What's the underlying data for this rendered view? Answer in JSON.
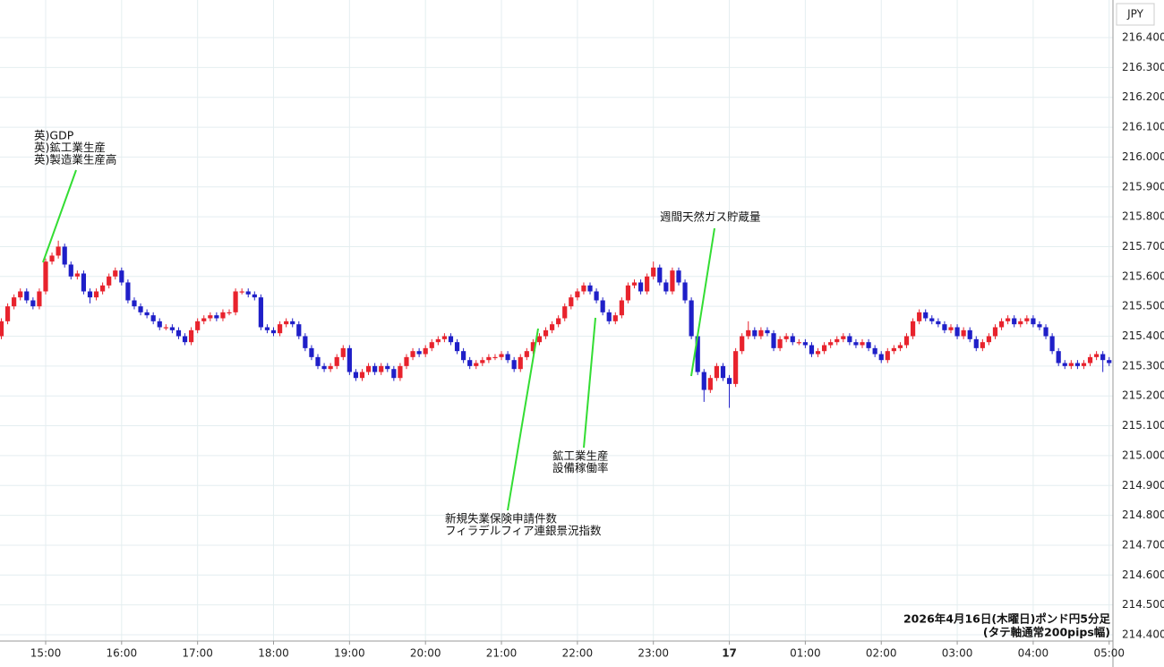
{
  "chart_data": {
    "type": "candlestick",
    "currency": "JPY",
    "footnote": [
      "2026年4月16日(木曜日)ポンド円5分足",
      "(タテ軸通常200pips幅)"
    ],
    "up_color": "#e8232d",
    "down_color": "#1f1fc8",
    "grid": true,
    "ylim": [
      214.379,
      216.526
    ],
    "yticks": [
      {
        "value": 214.4,
        "label": "214.400"
      },
      {
        "value": 214.5,
        "label": "214.500"
      },
      {
        "value": 214.6,
        "label": "214.600"
      },
      {
        "value": 214.7,
        "label": "214.700"
      },
      {
        "value": 214.8,
        "label": "214.800"
      },
      {
        "value": 214.9,
        "label": "214.900"
      },
      {
        "value": 215.0,
        "label": "215.000"
      },
      {
        "value": 215.1,
        "label": "215.100"
      },
      {
        "value": 215.2,
        "label": "215.200"
      },
      {
        "value": 215.3,
        "label": "215.300"
      },
      {
        "value": 215.4,
        "label": "215.400"
      },
      {
        "value": 215.5,
        "label": "215.500"
      },
      {
        "value": 215.6,
        "label": "215.600"
      },
      {
        "value": 215.7,
        "label": "215.700"
      },
      {
        "value": 215.8,
        "label": "215.800"
      },
      {
        "value": 215.9,
        "label": "215.900"
      },
      {
        "value": 216.0,
        "label": "216.000"
      },
      {
        "value": 216.1,
        "label": "216.100"
      },
      {
        "value": 216.2,
        "label": "216.200"
      },
      {
        "value": 216.3,
        "label": "216.300"
      },
      {
        "value": 216.4,
        "label": "216.400"
      }
    ],
    "categories": [
      null,
      null,
      null,
      null,
      null,
      null,
      null,
      "15:00",
      null,
      null,
      null,
      null,
      null,
      null,
      null,
      null,
      null,
      null,
      null,
      "16:00",
      null,
      null,
      null,
      null,
      null,
      null,
      null,
      null,
      null,
      null,
      null,
      "17:00",
      null,
      null,
      null,
      null,
      null,
      null,
      null,
      null,
      null,
      null,
      null,
      "18:00",
      null,
      null,
      null,
      null,
      null,
      null,
      null,
      null,
      null,
      null,
      null,
      "19:00",
      null,
      null,
      null,
      null,
      null,
      null,
      null,
      null,
      null,
      null,
      null,
      "20:00",
      null,
      null,
      null,
      null,
      null,
      null,
      null,
      null,
      null,
      null,
      null,
      "21:00",
      null,
      null,
      null,
      null,
      null,
      null,
      null,
      null,
      null,
      null,
      null,
      "22:00",
      null,
      null,
      null,
      null,
      null,
      null,
      null,
      null,
      null,
      null,
      null,
      "23:00",
      null,
      null,
      null,
      null,
      null,
      null,
      null,
      null,
      null,
      null,
      null,
      "17",
      null,
      null,
      null,
      null,
      null,
      null,
      null,
      null,
      null,
      null,
      null,
      "01:00",
      null,
      null,
      null,
      null,
      null,
      null,
      null,
      null,
      null,
      null,
      null,
      "02:00",
      null,
      null,
      null,
      null,
      null,
      null,
      null,
      null,
      null,
      null,
      null,
      "03:00",
      null,
      null,
      null,
      null,
      null,
      null,
      null,
      null,
      null,
      null,
      null,
      "04:00",
      null,
      null,
      null,
      null,
      null,
      null,
      null,
      null,
      null,
      null,
      null,
      "05:00"
    ],
    "open": [
      215.4,
      215.45,
      215.5,
      215.53,
      215.55,
      215.52,
      215.5,
      215.55,
      215.65,
      215.67,
      215.7,
      215.64,
      215.6,
      215.61,
      215.55,
      215.53,
      215.55,
      215.57,
      215.6,
      215.62,
      215.58,
      215.52,
      215.5,
      215.48,
      215.47,
      215.45,
      215.43,
      215.43,
      215.42,
      215.4,
      215.38,
      215.42,
      215.45,
      215.46,
      215.47,
      215.46,
      215.48,
      215.48,
      215.55,
      215.55,
      215.54,
      215.53,
      215.43,
      215.42,
      215.41,
      215.44,
      215.45,
      215.44,
      215.4,
      215.36,
      215.33,
      215.3,
      215.29,
      215.3,
      215.33,
      215.36,
      215.28,
      215.26,
      215.28,
      215.3,
      215.28,
      215.3,
      215.29,
      215.26,
      215.3,
      215.33,
      215.35,
      215.34,
      215.36,
      215.38,
      215.39,
      215.4,
      215.38,
      215.35,
      215.32,
      215.3,
      215.31,
      215.32,
      215.33,
      215.33,
      215.34,
      215.32,
      215.29,
      215.33,
      215.35,
      215.38,
      215.4,
      215.42,
      215.44,
      215.46,
      215.5,
      215.53,
      215.55,
      215.57,
      215.55,
      215.52,
      215.48,
      215.45,
      215.47,
      215.52,
      215.57,
      215.58,
      215.55,
      215.6,
      215.63,
      215.58,
      215.55,
      215.62,
      215.58,
      215.52,
      215.4,
      215.28,
      215.22,
      215.26,
      215.3,
      215.26,
      215.24,
      215.35,
      215.4,
      215.42,
      215.4,
      215.42,
      215.41,
      215.36,
      215.39,
      215.4,
      215.38,
      215.38,
      215.37,
      215.34,
      215.35,
      215.37,
      215.38,
      215.39,
      215.4,
      215.38,
      215.37,
      215.38,
      215.36,
      215.34,
      215.32,
      215.35,
      215.36,
      215.37,
      215.4,
      215.45,
      215.48,
      215.46,
      215.45,
      215.44,
      215.42,
      215.43,
      215.4,
      215.42,
      215.39,
      215.36,
      215.38,
      215.4,
      215.43,
      215.45,
      215.46,
      215.44,
      215.45,
      215.46,
      215.44,
      215.43,
      215.4,
      215.35,
      215.31,
      215.3,
      215.31,
      215.3,
      215.31,
      215.33,
      215.34,
      215.32
    ],
    "high": [
      215.46,
      215.51,
      215.54,
      215.56,
      215.56,
      215.53,
      215.56,
      215.66,
      215.68,
      215.72,
      215.71,
      215.65,
      215.62,
      215.62,
      215.56,
      215.56,
      215.58,
      215.61,
      215.63,
      215.63,
      215.59,
      215.53,
      215.51,
      215.49,
      215.48,
      215.46,
      215.44,
      215.44,
      215.43,
      215.41,
      215.43,
      215.46,
      215.47,
      215.48,
      215.48,
      215.49,
      215.49,
      215.56,
      215.56,
      215.56,
      215.55,
      215.54,
      215.44,
      215.43,
      215.45,
      215.46,
      215.46,
      215.45,
      215.41,
      215.37,
      215.34,
      215.31,
      215.31,
      215.34,
      215.37,
      215.37,
      215.29,
      215.29,
      215.31,
      215.31,
      215.31,
      215.31,
      215.3,
      215.31,
      215.34,
      215.36,
      215.36,
      215.37,
      215.39,
      215.4,
      215.41,
      215.41,
      215.39,
      215.36,
      215.33,
      215.32,
      215.33,
      215.34,
      215.34,
      215.35,
      215.35,
      215.33,
      215.34,
      215.36,
      215.39,
      215.41,
      215.43,
      215.45,
      215.47,
      215.51,
      215.54,
      215.56,
      215.58,
      215.58,
      215.56,
      215.53,
      215.49,
      215.48,
      215.53,
      215.58,
      215.59,
      215.59,
      215.61,
      215.65,
      215.64,
      215.59,
      215.63,
      215.63,
      215.59,
      215.53,
      215.41,
      215.29,
      215.27,
      215.31,
      215.31,
      215.27,
      215.36,
      215.41,
      215.45,
      215.43,
      215.43,
      215.43,
      215.42,
      215.4,
      215.41,
      215.41,
      215.39,
      215.39,
      215.38,
      215.36,
      215.38,
      215.39,
      215.4,
      215.41,
      215.41,
      215.39,
      215.39,
      215.39,
      215.37,
      215.35,
      215.36,
      215.37,
      215.38,
      215.41,
      215.46,
      215.49,
      215.49,
      215.47,
      215.46,
      215.45,
      215.44,
      215.44,
      215.43,
      215.43,
      215.4,
      215.39,
      215.41,
      215.44,
      215.46,
      215.47,
      215.47,
      215.46,
      215.47,
      215.47,
      215.45,
      215.44,
      215.41,
      215.36,
      215.32,
      215.32,
      215.32,
      215.32,
      215.34,
      215.35,
      215.35,
      215.33
    ],
    "low": [
      215.39,
      215.44,
      215.49,
      215.52,
      215.51,
      215.49,
      215.49,
      215.54,
      215.64,
      215.66,
      215.63,
      215.59,
      215.59,
      215.54,
      215.51,
      215.52,
      215.54,
      215.56,
      215.59,
      215.57,
      215.51,
      215.49,
      215.47,
      215.46,
      215.44,
      215.42,
      215.42,
      215.41,
      215.39,
      215.37,
      215.37,
      215.41,
      215.44,
      215.45,
      215.45,
      215.45,
      215.47,
      215.47,
      215.54,
      215.53,
      215.52,
      215.42,
      215.41,
      215.4,
      215.4,
      215.43,
      215.43,
      215.39,
      215.35,
      215.32,
      215.29,
      215.28,
      215.28,
      215.29,
      215.32,
      215.27,
      215.25,
      215.25,
      215.27,
      215.27,
      215.27,
      215.28,
      215.25,
      215.25,
      215.29,
      215.32,
      215.33,
      215.33,
      215.35,
      215.37,
      215.38,
      215.37,
      215.34,
      215.31,
      215.29,
      215.29,
      215.3,
      215.31,
      215.32,
      215.32,
      215.31,
      215.28,
      215.28,
      215.32,
      215.34,
      215.37,
      215.39,
      215.41,
      215.43,
      215.45,
      215.49,
      215.52,
      215.54,
      215.54,
      215.51,
      215.47,
      215.44,
      215.44,
      215.46,
      215.51,
      215.56,
      215.54,
      215.54,
      215.59,
      215.57,
      215.54,
      215.54,
      215.57,
      215.51,
      215.39,
      215.27,
      215.18,
      215.21,
      215.25,
      215.25,
      215.16,
      215.23,
      215.34,
      215.39,
      215.39,
      215.39,
      215.4,
      215.35,
      215.35,
      215.38,
      215.37,
      215.37,
      215.36,
      215.33,
      215.33,
      215.34,
      215.36,
      215.37,
      215.38,
      215.37,
      215.36,
      215.36,
      215.35,
      215.33,
      215.31,
      215.31,
      215.34,
      215.35,
      215.36,
      215.39,
      215.44,
      215.45,
      215.44,
      215.43,
      215.41,
      215.41,
      215.39,
      215.39,
      215.38,
      215.35,
      215.35,
      215.37,
      215.39,
      215.42,
      215.44,
      215.43,
      215.43,
      215.44,
      215.43,
      215.42,
      215.39,
      215.34,
      215.3,
      215.29,
      215.29,
      215.29,
      215.29,
      215.3,
      215.32,
      215.28,
      215.3
    ],
    "close": [
      215.45,
      215.5,
      215.53,
      215.55,
      215.52,
      215.5,
      215.55,
      215.65,
      215.67,
      215.7,
      215.64,
      215.6,
      215.61,
      215.55,
      215.53,
      215.55,
      215.57,
      215.6,
      215.62,
      215.58,
      215.52,
      215.5,
      215.48,
      215.47,
      215.45,
      215.43,
      215.43,
      215.42,
      215.4,
      215.38,
      215.42,
      215.45,
      215.46,
      215.47,
      215.46,
      215.48,
      215.48,
      215.55,
      215.55,
      215.54,
      215.53,
      215.43,
      215.42,
      215.41,
      215.44,
      215.45,
      215.44,
      215.4,
      215.36,
      215.33,
      215.3,
      215.29,
      215.3,
      215.33,
      215.36,
      215.28,
      215.26,
      215.28,
      215.3,
      215.28,
      215.3,
      215.29,
      215.26,
      215.3,
      215.33,
      215.35,
      215.34,
      215.36,
      215.38,
      215.39,
      215.4,
      215.38,
      215.35,
      215.32,
      215.3,
      215.31,
      215.32,
      215.33,
      215.33,
      215.34,
      215.32,
      215.29,
      215.33,
      215.35,
      215.38,
      215.4,
      215.42,
      215.44,
      215.46,
      215.5,
      215.53,
      215.55,
      215.57,
      215.55,
      215.52,
      215.48,
      215.45,
      215.47,
      215.52,
      215.57,
      215.58,
      215.55,
      215.6,
      215.63,
      215.58,
      215.55,
      215.62,
      215.58,
      215.52,
      215.4,
      215.28,
      215.22,
      215.26,
      215.3,
      215.26,
      215.24,
      215.35,
      215.4,
      215.42,
      215.4,
      215.42,
      215.41,
      215.36,
      215.39,
      215.4,
      215.38,
      215.38,
      215.37,
      215.34,
      215.35,
      215.37,
      215.38,
      215.39,
      215.4,
      215.38,
      215.37,
      215.38,
      215.36,
      215.34,
      215.32,
      215.35,
      215.36,
      215.37,
      215.4,
      215.45,
      215.48,
      215.46,
      215.45,
      215.44,
      215.42,
      215.43,
      215.4,
      215.42,
      215.39,
      215.36,
      215.38,
      215.4,
      215.43,
      215.45,
      215.46,
      215.44,
      215.45,
      215.46,
      215.44,
      215.43,
      215.4,
      215.35,
      215.31,
      215.3,
      215.31,
      215.3,
      215.31,
      215.33,
      215.34,
      215.32,
      215.31
    ],
    "annotations": [
      {
        "lines": [
          "英)GDP",
          "英)鉱工業生産",
          "英)製造業生産高"
        ]
      },
      {
        "lines": [
          "新規失業保険申請件数",
          "フィラデルフィア連銀景況指数"
        ]
      },
      {
        "lines": [
          "鉱工業生産",
          "設備稼働率"
        ]
      },
      {
        "lines": [
          "週間天然ガス貯蔵量"
        ]
      }
    ]
  }
}
